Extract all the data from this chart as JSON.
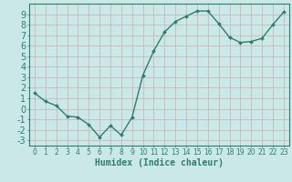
{
  "x": [
    0,
    1,
    2,
    3,
    4,
    5,
    6,
    7,
    8,
    9,
    10,
    11,
    12,
    13,
    14,
    15,
    16,
    17,
    18,
    19,
    20,
    21,
    22,
    23
  ],
  "y": [
    1.5,
    0.7,
    0.3,
    -0.7,
    -0.8,
    -1.5,
    -2.7,
    -1.6,
    -2.5,
    -0.8,
    3.2,
    5.5,
    7.3,
    8.3,
    8.8,
    9.3,
    9.3,
    8.1,
    6.8,
    6.3,
    6.4,
    6.7,
    8.0,
    9.2
  ],
  "line_color": "#2d7d6e",
  "marker": "D",
  "marker_size": 2.0,
  "linewidth": 1.0,
  "xlabel": "Humidex (Indice chaleur)",
  "xlim": [
    -0.5,
    23.5
  ],
  "ylim": [
    -3.5,
    10.0
  ],
  "yticks": [
    -3,
    -2,
    -1,
    0,
    1,
    2,
    3,
    4,
    5,
    6,
    7,
    8,
    9
  ],
  "xticks": [
    0,
    1,
    2,
    3,
    4,
    5,
    6,
    7,
    8,
    9,
    10,
    11,
    12,
    13,
    14,
    15,
    16,
    17,
    18,
    19,
    20,
    21,
    22,
    23
  ],
  "bg_color": "#cbe8e8",
  "grid_color": "#c8b8b8",
  "tick_color": "#2d7d6e",
  "xlabel_fontsize": 7,
  "ytick_fontsize": 7,
  "xtick_fontsize": 5.5
}
